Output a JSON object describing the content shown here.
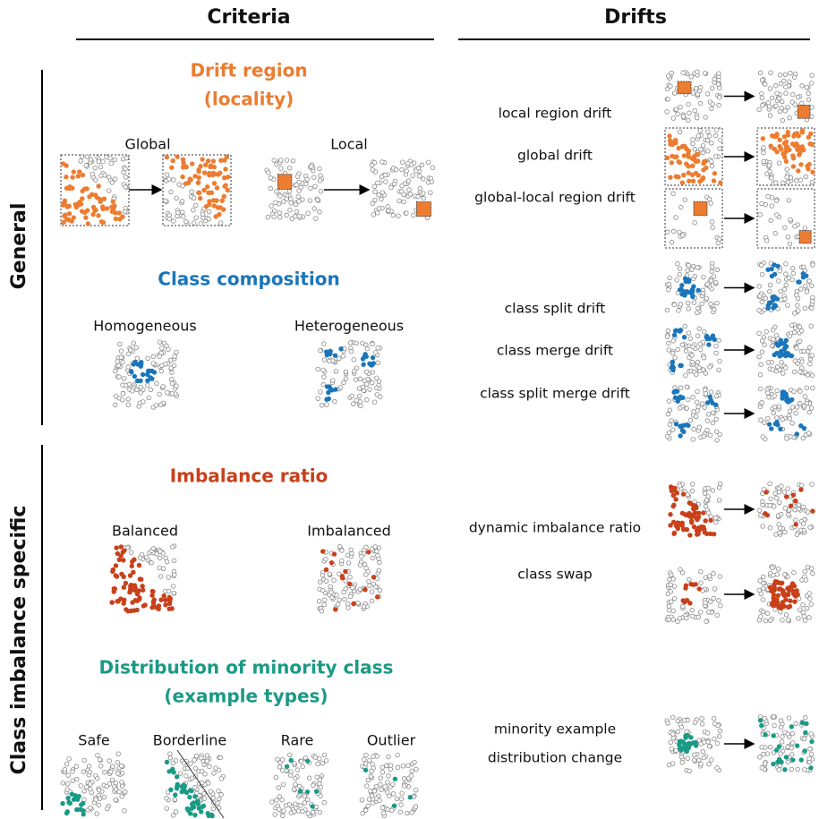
{
  "headers": {
    "criteria": "Criteria",
    "drifts": "Drifts"
  },
  "sections": [
    {
      "label": "General"
    },
    {
      "label": "Class imbalance specific"
    }
  ],
  "criteria": [
    {
      "title_lines": [
        "Drift region",
        "(locality)"
      ],
      "options": [
        "Global",
        "Local"
      ]
    },
    {
      "title_lines": [
        "Class composition"
      ],
      "options": [
        "Homogeneous",
        "Heterogeneous"
      ]
    },
    {
      "title_lines": [
        "Imbalance ratio"
      ],
      "options": [
        "Balanced",
        "Imbalanced"
      ]
    },
    {
      "title_lines": [
        "Distribution of minority class",
        "(example types)"
      ],
      "options": [
        "Safe",
        "Borderline",
        "Rare",
        "Outlier"
      ]
    }
  ],
  "drifts": [
    {
      "lines": [
        "local region drift"
      ]
    },
    {
      "lines": [
        "global drift"
      ]
    },
    {
      "lines": [
        "global-local region drift"
      ]
    },
    {
      "lines": [
        "class split drift"
      ]
    },
    {
      "lines": [
        "class merge drift"
      ]
    },
    {
      "lines": [
        "class split merge drift"
      ]
    },
    {
      "lines": [
        "dynamic imbalance ratio"
      ]
    },
    {
      "lines": [
        "class swap"
      ]
    },
    {
      "lines": [
        "minority example",
        "distribution change"
      ]
    }
  ]
}
